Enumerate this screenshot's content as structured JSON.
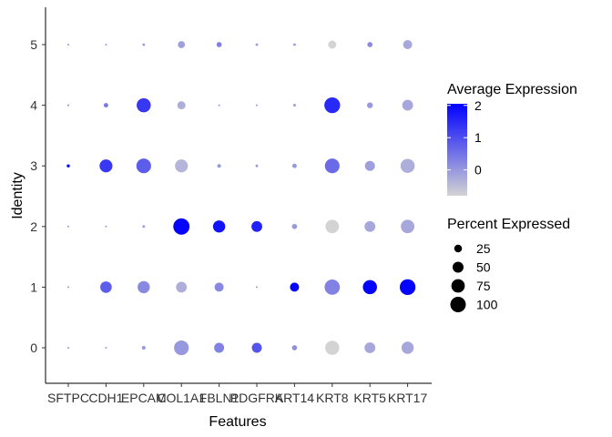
{
  "chart_data": {
    "type": "scatter",
    "title": "",
    "xlabel": "Features",
    "ylabel": "Identity",
    "features": [
      "SFTPC",
      "CDH1",
      "EPCAM",
      "COL1A1",
      "FBLN1",
      "PDGFRA",
      "KRT14",
      "KRT8",
      "KRT5",
      "KRT17"
    ],
    "identities": [
      "0",
      "1",
      "2",
      "3",
      "4",
      "5"
    ],
    "grid": false,
    "legend_position": "right",
    "colors": {
      "low": "#D3D3D3",
      "high": "#0000FF"
    },
    "color_scale": {
      "title": "Average Expression",
      "min": -0.8,
      "max": 2.05,
      "ticks": [
        0,
        1,
        2
      ],
      "tick_labels": [
        "0",
        "1",
        "2"
      ]
    },
    "size_scale": {
      "title": "Percent Expressed",
      "ticks": [
        25,
        50,
        75,
        100
      ],
      "tick_labels": [
        "25",
        "50",
        "75",
        "100"
      ]
    },
    "points": [
      {
        "feature": "SFTPC",
        "identity": "0",
        "pct": 1,
        "avg": 0.0
      },
      {
        "feature": "CDH1",
        "identity": "0",
        "pct": 1,
        "avg": 0.0
      },
      {
        "feature": "EPCAM",
        "identity": "0",
        "pct": 4,
        "avg": 0.0
      },
      {
        "feature": "COL1A1",
        "identity": "0",
        "pct": 65,
        "avg": 0.0
      },
      {
        "feature": "FBLN1",
        "identity": "0",
        "pct": 30,
        "avg": 0.3
      },
      {
        "feature": "PDGFRA",
        "identity": "0",
        "pct": 30,
        "avg": 0.9
      },
      {
        "feature": "KRT14",
        "identity": "0",
        "pct": 8,
        "avg": 0.1
      },
      {
        "feature": "KRT8",
        "identity": "0",
        "pct": 60,
        "avg": -0.8
      },
      {
        "feature": "KRT5",
        "identity": "0",
        "pct": 35,
        "avg": -0.2
      },
      {
        "feature": "KRT17",
        "identity": "0",
        "pct": 45,
        "avg": -0.2
      },
      {
        "feature": "SFTPC",
        "identity": "1",
        "pct": 1,
        "avg": 0.0
      },
      {
        "feature": "CDH1",
        "identity": "1",
        "pct": 40,
        "avg": 0.8
      },
      {
        "feature": "EPCAM",
        "identity": "1",
        "pct": 45,
        "avg": 0.2
      },
      {
        "feature": "COL1A1",
        "identity": "1",
        "pct": 35,
        "avg": -0.3
      },
      {
        "feature": "FBLN1",
        "identity": "1",
        "pct": 25,
        "avg": 0.2
      },
      {
        "feature": "PDGFRA",
        "identity": "1",
        "pct": 1,
        "avg": 0.0
      },
      {
        "feature": "KRT14",
        "identity": "1",
        "pct": 25,
        "avg": 2.0
      },
      {
        "feature": "KRT8",
        "identity": "1",
        "pct": 70,
        "avg": 0.3
      },
      {
        "feature": "KRT5",
        "identity": "1",
        "pct": 60,
        "avg": 2.0
      },
      {
        "feature": "KRT17",
        "identity": "1",
        "pct": 75,
        "avg": 2.0
      },
      {
        "feature": "SFTPC",
        "identity": "2",
        "pct": 1,
        "avg": 0.0
      },
      {
        "feature": "CDH1",
        "identity": "2",
        "pct": 1,
        "avg": 0.0
      },
      {
        "feature": "EPCAM",
        "identity": "2",
        "pct": 2,
        "avg": 0.0
      },
      {
        "feature": "COL1A1",
        "identity": "2",
        "pct": 80,
        "avg": 2.0
      },
      {
        "feature": "FBLN1",
        "identity": "2",
        "pct": 45,
        "avg": 1.8
      },
      {
        "feature": "PDGFRA",
        "identity": "2",
        "pct": 35,
        "avg": 1.6
      },
      {
        "feature": "KRT14",
        "identity": "2",
        "pct": 8,
        "avg": 0.0
      },
      {
        "feature": "KRT8",
        "identity": "2",
        "pct": 55,
        "avg": -0.8
      },
      {
        "feature": "KRT5",
        "identity": "2",
        "pct": 35,
        "avg": -0.2
      },
      {
        "feature": "KRT17",
        "identity": "2",
        "pct": 55,
        "avg": -0.2
      },
      {
        "feature": "SFTPC",
        "identity": "3",
        "pct": 3,
        "avg": 2.0
      },
      {
        "feature": "CDH1",
        "identity": "3",
        "pct": 50,
        "avg": 1.3
      },
      {
        "feature": "EPCAM",
        "identity": "3",
        "pct": 65,
        "avg": 0.8
      },
      {
        "feature": "COL1A1",
        "identity": "3",
        "pct": 50,
        "avg": -0.4
      },
      {
        "feature": "FBLN1",
        "identity": "3",
        "pct": 4,
        "avg": 0.0
      },
      {
        "feature": "PDGFRA",
        "identity": "3",
        "pct": 2,
        "avg": 0.0
      },
      {
        "feature": "KRT14",
        "identity": "3",
        "pct": 6,
        "avg": 0.0
      },
      {
        "feature": "KRT8",
        "identity": "3",
        "pct": 65,
        "avg": 0.6
      },
      {
        "feature": "KRT5",
        "identity": "3",
        "pct": 30,
        "avg": -0.1
      },
      {
        "feature": "KRT17",
        "identity": "3",
        "pct": 60,
        "avg": -0.3
      },
      {
        "feature": "SFTPC",
        "identity": "4",
        "pct": 1,
        "avg": 0.2
      },
      {
        "feature": "CDH1",
        "identity": "4",
        "pct": 6,
        "avg": 0.4
      },
      {
        "feature": "EPCAM",
        "identity": "4",
        "pct": 60,
        "avg": 1.3
      },
      {
        "feature": "COL1A1",
        "identity": "4",
        "pct": 20,
        "avg": -0.3
      },
      {
        "feature": "FBLN1",
        "identity": "4",
        "pct": 1,
        "avg": 0.0
      },
      {
        "feature": "PDGFRA",
        "identity": "4",
        "pct": 1,
        "avg": 0.0
      },
      {
        "feature": "KRT14",
        "identity": "4",
        "pct": 2,
        "avg": 0.0
      },
      {
        "feature": "KRT8",
        "identity": "4",
        "pct": 75,
        "avg": 1.5
      },
      {
        "feature": "KRT5",
        "identity": "4",
        "pct": 10,
        "avg": 0.0
      },
      {
        "feature": "KRT17",
        "identity": "4",
        "pct": 35,
        "avg": -0.2
      },
      {
        "feature": "SFTPC",
        "identity": "5",
        "pct": 1,
        "avg": 0.0
      },
      {
        "feature": "CDH1",
        "identity": "5",
        "pct": 1,
        "avg": 0.0
      },
      {
        "feature": "EPCAM",
        "identity": "5",
        "pct": 2,
        "avg": 0.0
      },
      {
        "feature": "COL1A1",
        "identity": "5",
        "pct": 15,
        "avg": -0.1
      },
      {
        "feature": "FBLN1",
        "identity": "5",
        "pct": 8,
        "avg": 0.3
      },
      {
        "feature": "PDGFRA",
        "identity": "5",
        "pct": 2,
        "avg": 0.0
      },
      {
        "feature": "KRT14",
        "identity": "5",
        "pct": 2,
        "avg": 0.0
      },
      {
        "feature": "KRT8",
        "identity": "5",
        "pct": 20,
        "avg": -0.8
      },
      {
        "feature": "KRT5",
        "identity": "5",
        "pct": 8,
        "avg": 0.2
      },
      {
        "feature": "KRT17",
        "identity": "5",
        "pct": 25,
        "avg": -0.2
      }
    ]
  }
}
